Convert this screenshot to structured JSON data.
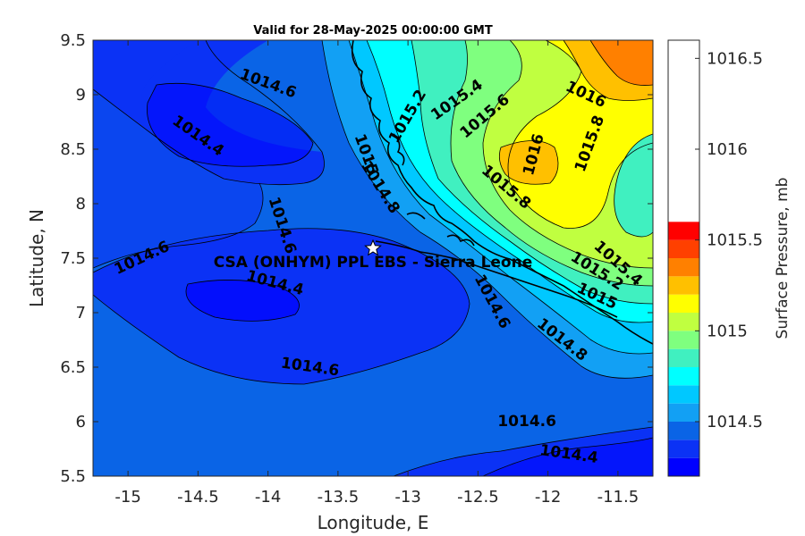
{
  "chart_data": {
    "type": "contour",
    "title": "Valid for 28-May-2025 00:00:00 GMT",
    "xlabel": "Longitude, E",
    "ylabel": "Latitude, N",
    "xlim": [
      -15.25,
      -11.25
    ],
    "ylim": [
      5.5,
      9.5
    ],
    "xticks": [
      -15,
      -14.5,
      -14,
      -13.5,
      -13,
      -12.5,
      -12,
      -11.5
    ],
    "xtick_labels": [
      "-15",
      "-14.5",
      "-14",
      "-13.5",
      "-13",
      "-12.5",
      "-12",
      "-11.5"
    ],
    "yticks": [
      5.5,
      6,
      6.5,
      7,
      7.5,
      8,
      8.5,
      9,
      9.5
    ],
    "ytick_labels": [
      "5.5",
      "6",
      "6.5",
      "7",
      "7.5",
      "8",
      "8.5",
      "9",
      "9.5"
    ],
    "colorbar": {
      "label": "Surface Pressure, mb",
      "ticks": [
        1014.5,
        1015,
        1015.5,
        1016,
        1016.5
      ],
      "tick_labels": [
        "1014.5",
        "1015",
        "1015.5",
        "1016",
        "1016.5"
      ],
      "range": [
        1014.2,
        1016.6
      ],
      "levels": [
        1014.2,
        1014.3,
        1014.4,
        1014.5,
        1014.6,
        1014.7,
        1014.8,
        1014.9,
        1015.0,
        1015.1,
        1015.2,
        1015.3,
        1015.4,
        1015.5,
        1015.6,
        1015.7,
        1015.8,
        1015.9,
        1016.0,
        1016.1,
        1016.2,
        1016.3,
        1016.4,
        1016.5,
        1016.6
      ],
      "colors": [
        "#0000ff",
        "#0b32f5",
        "#0a64e6",
        "#12a0f4",
        "#00c8ff",
        "#00ffff",
        "#40f0c0",
        "#7fff7f",
        "#c0ff40",
        "#ffff00",
        "#ffc000",
        "#ff8000",
        "#ff4000",
        "#ff0000"
      ]
    },
    "station": {
      "name": "CSA (ONHYM) PPL EBS  - Sierra Leone",
      "lon": -13.25,
      "lat": 7.59
    },
    "contour_labels": [
      {
        "text": "1014.6",
        "lon": -14.0,
        "lat": 9.1,
        "rot": 20
      },
      {
        "text": "1014.4",
        "lon": -14.5,
        "lat": 8.62,
        "rot": 35
      },
      {
        "text": "1014.6",
        "lon": -14.9,
        "lat": 7.5,
        "rot": -25
      },
      {
        "text": "1014.6",
        "lon": -13.9,
        "lat": 7.8,
        "rot": 72
      },
      {
        "text": "1014.4",
        "lon": -13.95,
        "lat": 7.27,
        "rot": 15
      },
      {
        "text": "1014.6",
        "lon": -13.7,
        "lat": 6.5,
        "rot": 8
      },
      {
        "text": "1014.6",
        "lon": -12.15,
        "lat": 6.0,
        "rot": 0
      },
      {
        "text": "1014.4",
        "lon": -11.85,
        "lat": 5.7,
        "rot": 8
      },
      {
        "text": "1014.8",
        "lon": -13.2,
        "lat": 8.15,
        "rot": 58
      },
      {
        "text": "1015",
        "lon": -13.3,
        "lat": 8.45,
        "rot": 70
      },
      {
        "text": "1015.2",
        "lon": -13.0,
        "lat": 8.8,
        "rot": -60
      },
      {
        "text": "1015.4",
        "lon": -12.65,
        "lat": 8.95,
        "rot": -35
      },
      {
        "text": "1015.6",
        "lon": -12.45,
        "lat": 8.8,
        "rot": -40
      },
      {
        "text": "1016",
        "lon": -12.1,
        "lat": 8.45,
        "rot": -75
      },
      {
        "text": "1015.8",
        "lon": -12.3,
        "lat": 8.15,
        "rot": 40
      },
      {
        "text": "1015.8",
        "lon": -11.7,
        "lat": 8.55,
        "rot": -70
      },
      {
        "text": "1016",
        "lon": -11.73,
        "lat": 9.0,
        "rot": 25
      },
      {
        "text": "1014.6",
        "lon": -12.4,
        "lat": 7.1,
        "rot": 62
      },
      {
        "text": "1014.8",
        "lon": -11.9,
        "lat": 6.75,
        "rot": 38
      },
      {
        "text": "1015",
        "lon": -11.65,
        "lat": 7.15,
        "rot": 25
      },
      {
        "text": "1015.2",
        "lon": -11.65,
        "lat": 7.38,
        "rot": 32
      },
      {
        "text": "1015.4",
        "lon": -11.5,
        "lat": 7.45,
        "rot": 42
      }
    ]
  }
}
